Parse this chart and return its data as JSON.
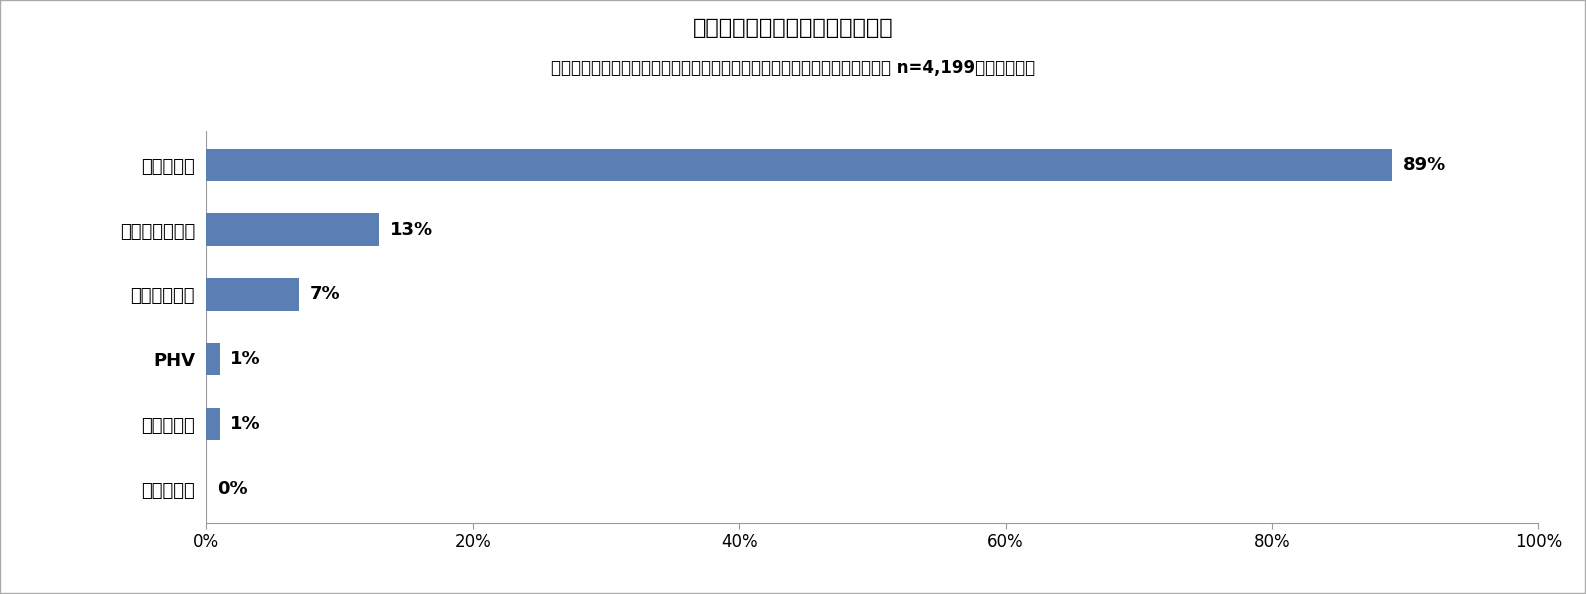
{
  "title": "保有するクルマのエンジンタイプ",
  "subtitle": "（クルマ保有者で、ガソリン車以外のクルマの購入を検討したことがある人 n=4,199／複数回答）",
  "categories": [
    "水素自動車",
    "電気自動車",
    "PHV",
    "ディーゼル車",
    "ハイブリッド車",
    "ガソリン車"
  ],
  "values": [
    0,
    1,
    1,
    7,
    13,
    89
  ],
  "labels": [
    "0%",
    "1%",
    "1%",
    "7%",
    "13%",
    "89%"
  ],
  "bar_color": "#5b7fb5",
  "background_color": "#ffffff",
  "border_color": "#aaaaaa",
  "xlim": [
    0,
    100
  ],
  "xticks": [
    0,
    20,
    40,
    60,
    80,
    100
  ],
  "xtick_labels": [
    "0%",
    "20%",
    "40%",
    "60%",
    "80%",
    "100%"
  ],
  "title_fontsize": 16,
  "subtitle_fontsize": 12,
  "label_fontsize": 13,
  "tick_fontsize": 12,
  "category_fontsize": 13
}
